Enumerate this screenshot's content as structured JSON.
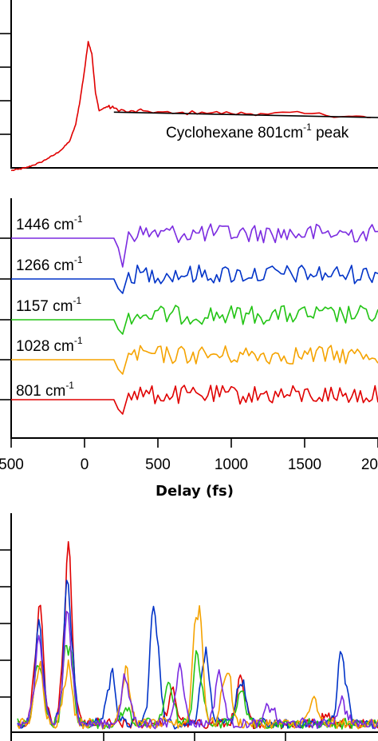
{
  "chart_data": [
    {
      "type": "line",
      "title": "",
      "xlabel": "",
      "ylabel": "",
      "xlim": [
        -500,
        2000
      ],
      "annotation": {
        "prefix": "Cyclohexane 801cm",
        "sup": "-1",
        "suffix": " peak"
      },
      "series": [
        {
          "color": "#e00000",
          "points": [
            [
              -500,
              -0.02
            ],
            [
              -450,
              -0.01
            ],
            [
              -400,
              0.0
            ],
            [
              -350,
              0.02
            ],
            [
              -300,
              0.04
            ],
            [
              -250,
              0.07
            ],
            [
              -200,
              0.1
            ],
            [
              -150,
              0.14
            ],
            [
              -100,
              0.2
            ],
            [
              -60,
              0.32
            ],
            [
              -30,
              0.5
            ],
            [
              0,
              0.72
            ],
            [
              25,
              0.93
            ],
            [
              50,
              0.84
            ],
            [
              75,
              0.55
            ],
            [
              100,
              0.42
            ],
            [
              150,
              0.45
            ],
            [
              200,
              0.44
            ],
            [
              300,
              0.41
            ],
            [
              400,
              0.42
            ],
            [
              600,
              0.4
            ],
            [
              800,
              0.41
            ],
            [
              1000,
              0.4
            ],
            [
              1200,
              0.4
            ],
            [
              1500,
              0.4
            ],
            [
              1800,
              0.38
            ],
            [
              1950,
              0.37
            ]
          ]
        },
        {
          "color": "#000000",
          "points": [
            [
              200,
              0.41
            ],
            [
              2000,
              0.37
            ]
          ]
        }
      ]
    },
    {
      "type": "line",
      "title": "",
      "xlabel": "Delay (fs)",
      "xlim": [
        -500,
        2000
      ],
      "xticks": [
        "500",
        "0",
        "500",
        "1000",
        "1500",
        "2000"
      ],
      "series": [
        {
          "label": "1446 cm",
          "sup": "-1",
          "color": "#7b2be0"
        },
        {
          "label": "1266 cm",
          "sup": "-1",
          "color": "#0033c8"
        },
        {
          "label": "1157 cm",
          "sup": "-1",
          "color": "#22c414"
        },
        {
          "label": "1028 cm",
          "sup": "-1",
          "color": "#f5a300"
        },
        {
          "label": "801 cm",
          "sup": "-1",
          "color": "#e00000"
        }
      ]
    },
    {
      "type": "line",
      "title": "",
      "xlabel": "",
      "series": [
        {
          "color": "#e00000",
          "peaks": [
            [
              0.06,
              0.6
            ],
            [
              0.14,
              0.87
            ],
            [
              0.43,
              0.16
            ],
            [
              0.62,
              0.22
            ],
            [
              0.86,
              0.06
            ]
          ]
        },
        {
          "color": "#0033c8",
          "peaks": [
            [
              0.06,
              0.49
            ],
            [
              0.14,
              0.72
            ],
            [
              0.26,
              0.26
            ],
            [
              0.38,
              0.62
            ],
            [
              0.52,
              0.38
            ],
            [
              0.62,
              0.24
            ],
            [
              0.9,
              0.37
            ]
          ]
        },
        {
          "color": "#22c414",
          "peaks": [
            [
              0.06,
              0.33
            ],
            [
              0.14,
              0.46
            ],
            [
              0.3,
              0.08
            ],
            [
              0.42,
              0.22
            ],
            [
              0.5,
              0.35
            ],
            [
              0.62,
              0.18
            ]
          ]
        },
        {
          "color": "#f5a300",
          "peaks": [
            [
              0.06,
              0.3
            ],
            [
              0.14,
              0.3
            ],
            [
              0.3,
              0.26
            ],
            [
              0.5,
              0.66
            ],
            [
              0.58,
              0.3
            ],
            [
              0.82,
              0.12
            ]
          ]
        },
        {
          "color": "#7b2be0",
          "peaks": [
            [
              0.06,
              0.42
            ],
            [
              0.14,
              0.57
            ],
            [
              0.3,
              0.23
            ],
            [
              0.45,
              0.3
            ],
            [
              0.56,
              0.26
            ],
            [
              0.7,
              0.1
            ],
            [
              0.9,
              0.12
            ]
          ]
        }
      ]
    }
  ]
}
